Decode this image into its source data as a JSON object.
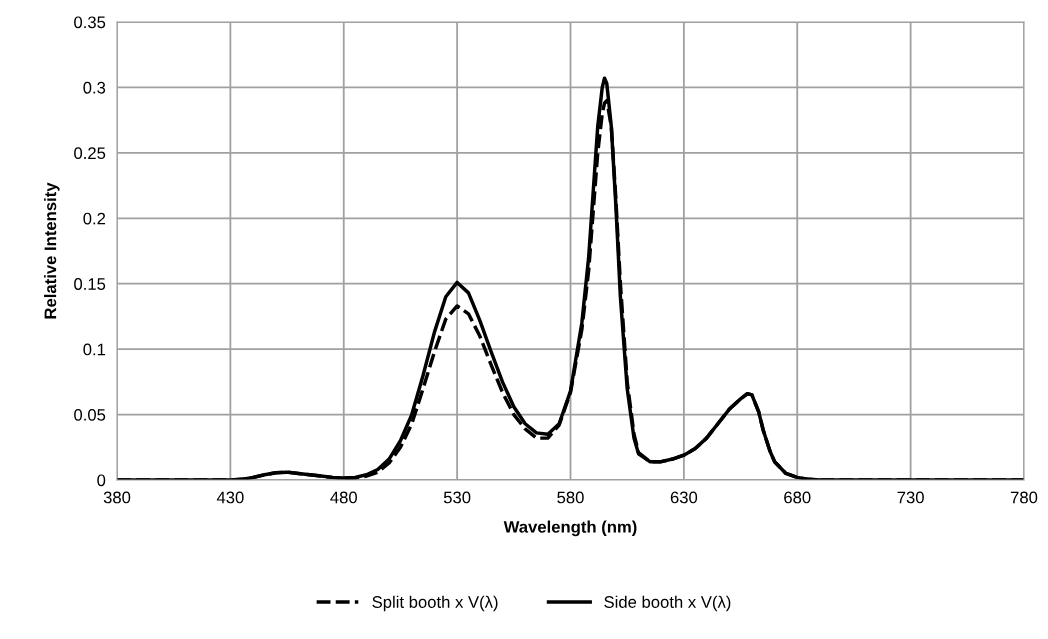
{
  "chart_data": {
    "type": "line",
    "xlabel": "Wavelength (nm)",
    "ylabel": "Relative Intensity",
    "xlim": [
      380,
      780
    ],
    "xticks": [
      380,
      430,
      480,
      530,
      580,
      630,
      680,
      730,
      780
    ],
    "ylim": [
      0,
      0.35
    ],
    "yticks": [
      0,
      0.05,
      0.1,
      0.15,
      0.2,
      0.25,
      0.3,
      0.35
    ],
    "grid": true,
    "legend": "bottom",
    "marker": "none",
    "series": [
      {
        "name": "Split booth x V(λ)",
        "color": "#000000",
        "line_style": "dashed",
        "x": [
          380,
          400,
          420,
          430,
          435,
          440,
          445,
          450,
          455,
          460,
          465,
          470,
          475,
          480,
          485,
          490,
          495,
          500,
          505,
          510,
          515,
          520,
          525,
          530,
          535,
          540,
          545,
          550,
          555,
          560,
          565,
          570,
          575,
          580,
          585,
          588,
          590,
          592,
          594,
          595,
          596,
          598,
          600,
          602,
          605,
          608,
          610,
          615,
          620,
          625,
          630,
          635,
          640,
          645,
          650,
          655,
          658,
          660,
          663,
          665,
          668,
          670,
          675,
          680,
          685,
          690,
          720,
          750,
          780
        ],
        "values": [
          0,
          0,
          0,
          0,
          0.0005,
          0.002,
          0.004,
          0.0055,
          0.006,
          0.005,
          0.004,
          0.003,
          0.002,
          0.0015,
          0.0015,
          0.003,
          0.006,
          0.013,
          0.025,
          0.043,
          0.07,
          0.098,
          0.123,
          0.133,
          0.127,
          0.11,
          0.088,
          0.067,
          0.05,
          0.039,
          0.032,
          0.032,
          0.042,
          0.067,
          0.115,
          0.16,
          0.205,
          0.25,
          0.28,
          0.288,
          0.29,
          0.27,
          0.215,
          0.15,
          0.075,
          0.035,
          0.021,
          0.014,
          0.014,
          0.016,
          0.019,
          0.024,
          0.032,
          0.043,
          0.054,
          0.062,
          0.066,
          0.065,
          0.052,
          0.038,
          0.022,
          0.014,
          0.005,
          0.002,
          0.0005,
          0,
          0,
          0,
          0
        ]
      },
      {
        "name": "Side booth x V(λ)",
        "color": "#000000",
        "line_style": "solid",
        "x": [
          380,
          400,
          420,
          430,
          435,
          440,
          445,
          450,
          455,
          460,
          465,
          470,
          475,
          480,
          485,
          490,
          495,
          500,
          505,
          510,
          515,
          520,
          525,
          530,
          535,
          540,
          545,
          550,
          555,
          560,
          565,
          570,
          575,
          580,
          585,
          588,
          590,
          592,
          594,
          595,
          596,
          598,
          600,
          602,
          605,
          608,
          610,
          615,
          620,
          625,
          630,
          635,
          640,
          645,
          650,
          655,
          658,
          660,
          663,
          665,
          668,
          670,
          675,
          680,
          685,
          690,
          720,
          750,
          780
        ],
        "values": [
          0,
          0,
          0,
          0,
          0.0005,
          0.002,
          0.004,
          0.0055,
          0.006,
          0.005,
          0.004,
          0.003,
          0.002,
          0.0015,
          0.002,
          0.004,
          0.008,
          0.016,
          0.03,
          0.05,
          0.08,
          0.113,
          0.14,
          0.151,
          0.143,
          0.122,
          0.098,
          0.075,
          0.056,
          0.043,
          0.036,
          0.035,
          0.043,
          0.068,
          0.12,
          0.17,
          0.22,
          0.27,
          0.3,
          0.307,
          0.303,
          0.27,
          0.21,
          0.14,
          0.07,
          0.032,
          0.02,
          0.014,
          0.014,
          0.016,
          0.019,
          0.024,
          0.032,
          0.043,
          0.054,
          0.062,
          0.066,
          0.065,
          0.052,
          0.038,
          0.022,
          0.014,
          0.005,
          0.002,
          0.0005,
          0,
          0,
          0,
          0
        ]
      }
    ]
  }
}
